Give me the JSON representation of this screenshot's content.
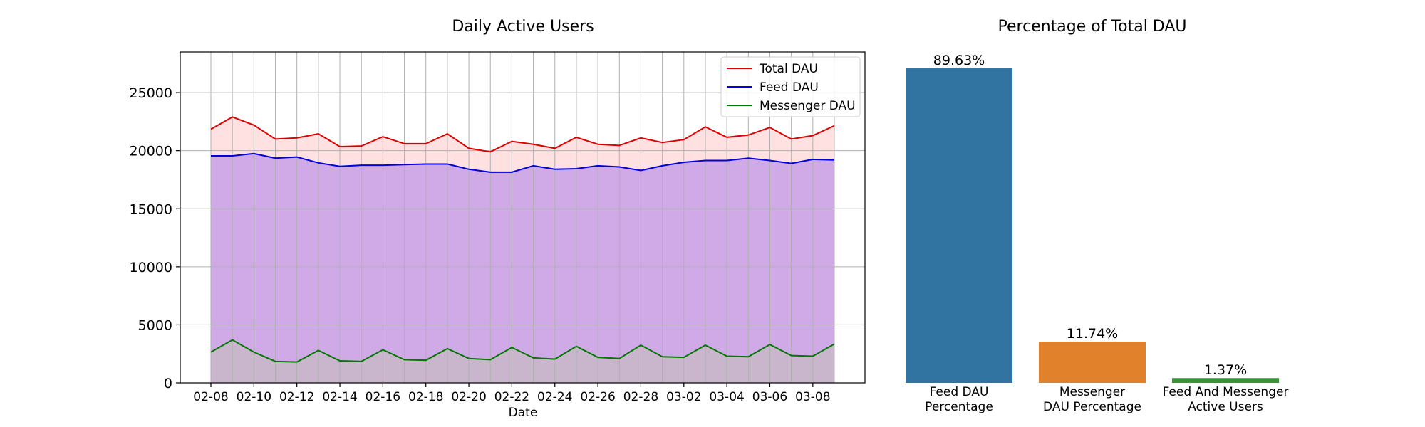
{
  "colors": {
    "total": "#dd0000",
    "feed": "#0000dd",
    "messenger": "#007700",
    "total_fill": "#ffc8c8",
    "feed_fill": "#c8a0e8",
    "messenger_fill": "#c8b8c8",
    "grid": "#b0b0b0",
    "bar_feed": "#3274a1",
    "bar_messenger": "#e1812c",
    "bar_both": "#3a923a"
  },
  "chart_data": [
    {
      "type": "line",
      "title": "Daily Active Users",
      "xlabel": "Date",
      "ylabel": "",
      "ylim": [
        0,
        28500
      ],
      "grid": true,
      "legend_position": "top-right",
      "yticks": [
        "0",
        "5000",
        "10000",
        "15000",
        "20000",
        "25000"
      ],
      "x": [
        "02-08",
        "02-09",
        "02-10",
        "02-11",
        "02-12",
        "02-13",
        "02-14",
        "02-15",
        "02-16",
        "02-17",
        "02-18",
        "02-19",
        "02-20",
        "02-21",
        "02-22",
        "02-23",
        "02-24",
        "02-25",
        "02-26",
        "02-27",
        "02-28",
        "03-01",
        "03-02",
        "03-03",
        "03-04",
        "03-05",
        "03-06",
        "03-07",
        "03-08",
        "03-09"
      ],
      "xtick_labels": [
        "02-08",
        "02-10",
        "02-12",
        "02-14",
        "02-16",
        "02-18",
        "02-20",
        "02-22",
        "02-24",
        "02-26",
        "02-28",
        "03-02",
        "03-04",
        "03-06",
        "03-08"
      ],
      "series": [
        {
          "name": "Total DAU",
          "values": [
            21850,
            22900,
            22200,
            21000,
            21100,
            21450,
            20350,
            20400,
            21200,
            20600,
            20600,
            21450,
            20200,
            19900,
            20800,
            20550,
            20200,
            21150,
            20550,
            20450,
            21100,
            20700,
            20950,
            22050,
            21150,
            21350,
            22000,
            21000,
            21300,
            22150
          ]
        },
        {
          "name": "Feed DAU",
          "values": [
            19550,
            19550,
            19750,
            19350,
            19450,
            18950,
            18650,
            18750,
            18750,
            18800,
            18850,
            18850,
            18400,
            18150,
            18150,
            18700,
            18400,
            18450,
            18700,
            18600,
            18300,
            18700,
            19000,
            19150,
            19150,
            19350,
            19150,
            18900,
            19250,
            19200
          ]
        },
        {
          "name": "Messenger DAU",
          "values": [
            2650,
            3700,
            2650,
            1850,
            1800,
            2800,
            1900,
            1850,
            2850,
            2000,
            1950,
            2950,
            2100,
            2000,
            3050,
            2150,
            2050,
            3150,
            2200,
            2100,
            3250,
            2250,
            2200,
            3250,
            2300,
            2250,
            3300,
            2350,
            2300,
            3350
          ]
        }
      ]
    },
    {
      "type": "bar",
      "title": "Percentage of Total DAU",
      "xlabel": "",
      "ylabel": "",
      "ylim": [
        0,
        94.3
      ],
      "categories": [
        [
          "Feed DAU",
          "Percentage"
        ],
        [
          "Messenger",
          "DAU Percentage"
        ],
        [
          "Feed And Messenger",
          "Active Users"
        ]
      ],
      "values": [
        89.63,
        11.74,
        1.37
      ],
      "data_labels": [
        "89.63%",
        "11.74%",
        "1.37%"
      ]
    }
  ]
}
